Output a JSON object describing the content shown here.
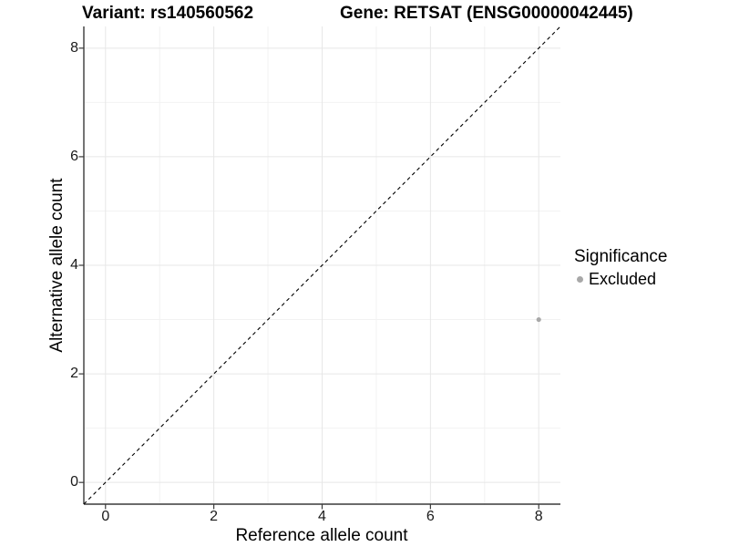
{
  "title": {
    "variant": "Variant: rs140560562",
    "gene": "Gene: RETSAT (ENSG00000042445)"
  },
  "legend": {
    "title": "Significance",
    "items": [
      {
        "label": "Excluded",
        "color": "#a8a8a8"
      }
    ]
  },
  "chart_data": {
    "type": "scatter",
    "title": "Variant: rs140560562   Gene: RETSAT (ENSG00000042445)",
    "xlabel": "Reference allele count",
    "ylabel": "Alternative allele count",
    "xlim": [
      -0.4,
      8.4
    ],
    "ylim": [
      -0.4,
      8.4
    ],
    "x_ticks": [
      0,
      2,
      4,
      6,
      8
    ],
    "y_ticks": [
      0,
      2,
      4,
      6,
      8
    ],
    "x_minor_ticks": [
      1,
      3,
      5,
      7
    ],
    "y_minor_ticks": [
      1,
      3,
      5,
      7
    ],
    "grid": true,
    "legend_position": "right",
    "legend_title": "Significance",
    "series": [
      {
        "name": "Excluded",
        "color": "#a8a8a8",
        "points": [
          {
            "x": 8,
            "y": 3
          }
        ]
      }
    ],
    "reference_line": {
      "kind": "identity y=x",
      "style": "dashed",
      "color": "#000000"
    }
  },
  "colors": {
    "background": "#ffffff",
    "axis_line": "#3a3a3a",
    "major_grid": "#e7e7e7",
    "minor_grid": "#f2f2f2",
    "point": "#a8a8a8",
    "text": "#000000"
  }
}
